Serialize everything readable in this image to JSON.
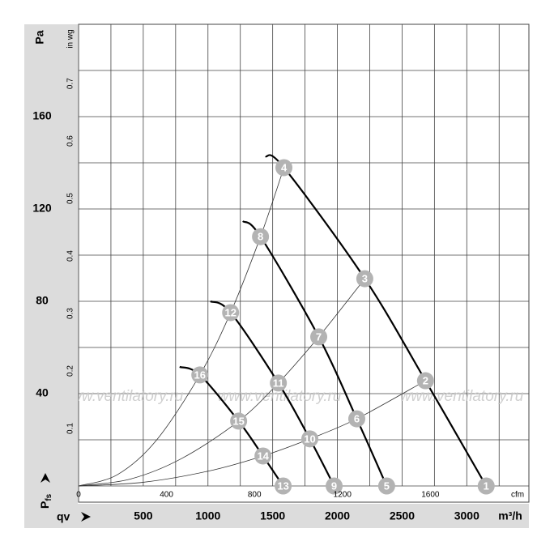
{
  "chart_data": {
    "type": "line",
    "y_label": "Pa",
    "y2_label": "in wg",
    "x2_label": "cfm",
    "x_label": "m³/h",
    "x_symbol": "qv",
    "y_symbol": {
      "main": "P",
      "sub": "fs"
    },
    "watermark": "www.ventilatory.ru",
    "xlim": [
      0,
      3480
    ],
    "ylim": [
      0,
      200
    ],
    "xticks": [
      500,
      1000,
      1500,
      2000,
      2500,
      3000
    ],
    "yticks": [
      40,
      80,
      120,
      160
    ],
    "xgrid": [
      250,
      500,
      750,
      1000,
      1250,
      1500,
      1750,
      2000,
      2250,
      2500,
      2750,
      3000,
      3250
    ],
    "ygrid": [
      20,
      40,
      60,
      80,
      100,
      120,
      140,
      160,
      180
    ],
    "x2lim": [
      0,
      2048
    ],
    "x2ticks": [
      0,
      400,
      800,
      1200,
      1600
    ],
    "y2lim": [
      0,
      0.803
    ],
    "y2ticks": [
      0.1,
      0.2,
      0.3,
      0.4,
      0.5,
      0.6,
      0.7
    ],
    "series": [
      {
        "color": "#000000",
        "line_width": 2.2,
        "x": [
          1444,
          1587,
          2212,
          2681,
          3150
        ],
        "values": [
          142.8,
          137.9,
          89.8,
          45.6,
          0
        ]
      },
      {
        "color": "#000000",
        "line_width": 2.2,
        "x": [
          1269,
          1406,
          1856,
          2150,
          2381
        ],
        "values": [
          114.7,
          108,
          64.6,
          29.1,
          0
        ]
      },
      {
        "color": "#000000",
        "line_width": 2.2,
        "x": [
          1019,
          1175,
          1544,
          1787,
          1975
        ],
        "values": [
          80,
          75.1,
          44.6,
          20.4,
          0
        ]
      },
      {
        "color": "#000000",
        "line_width": 2.2,
        "x": [
          781,
          937,
          1237,
          1425,
          1581
        ],
        "values": [
          51.6,
          48.1,
          28.1,
          13,
          0
        ]
      },
      {
        "color": "#333333",
        "line_width": 0.8,
        "x": [
          0,
          300,
          600,
          937,
          1175,
          1406,
          1587
        ],
        "values": [
          0,
          4.9,
          19.7,
          48.1,
          75.1,
          108,
          137.9
        ]
      },
      {
        "color": "#333333",
        "line_width": 0.8,
        "x": [
          0,
          400,
          800,
          1237,
          1544,
          1856,
          2212
        ],
        "values": [
          0,
          3,
          12,
          28.1,
          44.6,
          64.6,
          89.8
        ]
      },
      {
        "color": "#333333",
        "line_width": 0.8,
        "x": [
          0,
          500,
          1000,
          1425,
          1787,
          2150,
          2681
        ],
        "values": [
          0,
          1.6,
          6.4,
          13,
          20.4,
          29.1,
          45.6
        ]
      }
    ],
    "markers": [
      {
        "label": "1",
        "x": 3150,
        "y": 0
      },
      {
        "label": "2",
        "x": 2681,
        "y": 45.6
      },
      {
        "label": "3",
        "x": 2212,
        "y": 89.8
      },
      {
        "label": "4",
        "x": 1587,
        "y": 137.9
      },
      {
        "label": "5",
        "x": 2381,
        "y": 0
      },
      {
        "label": "6",
        "x": 2150,
        "y": 29.1
      },
      {
        "label": "7",
        "x": 1856,
        "y": 64.6
      },
      {
        "label": "8",
        "x": 1406,
        "y": 108
      },
      {
        "label": "9",
        "x": 1975,
        "y": 0
      },
      {
        "label": "10",
        "x": 1787,
        "y": 20.4
      },
      {
        "label": "11",
        "x": 1544,
        "y": 44.6
      },
      {
        "label": "12",
        "x": 1175,
        "y": 75.1
      },
      {
        "label": "13",
        "x": 1581,
        "y": 0
      },
      {
        "label": "14",
        "x": 1425,
        "y": 13
      },
      {
        "label": "15",
        "x": 1237,
        "y": 28.1
      },
      {
        "label": "16",
        "x": 937,
        "y": 48.1
      }
    ],
    "marker_color": "#b3b3b3"
  }
}
